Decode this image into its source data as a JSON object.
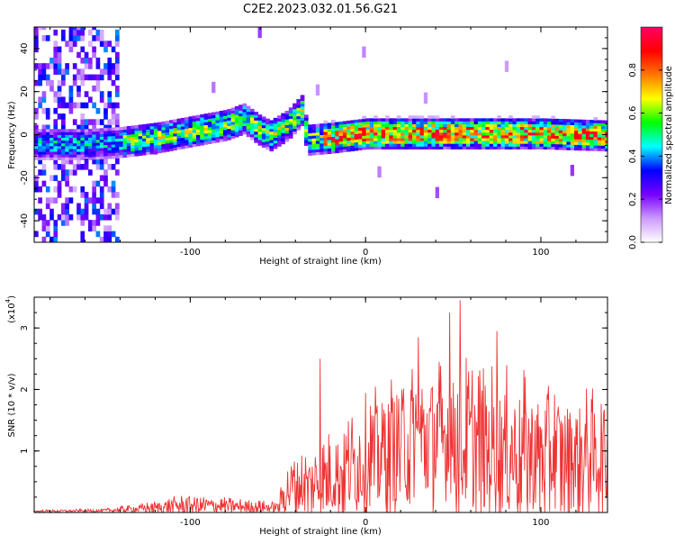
{
  "figure": {
    "title": "C2E2.2023.032.01.56.G21"
  },
  "chart_data": [
    {
      "type": "heatmap",
      "xlabel": "Height of straight line (km)",
      "ylabel": "Frequency (Hz)",
      "xlim": [
        -189,
        138
      ],
      "ylim": [
        -50,
        50
      ],
      "x_ticks": [
        -100,
        0,
        100
      ],
      "y_ticks": [
        -40,
        -20,
        0,
        20,
        40
      ],
      "colorbar": {
        "label": "Normalized spectral amplitude",
        "range": [
          0,
          1
        ],
        "ticks": [
          "0.0",
          "0.2",
          "0.4",
          "0.6",
          "0.8"
        ],
        "colors": [
          "#ffffff",
          "#cc99ff",
          "#7700ff",
          "#0000ff",
          "#00ffff",
          "#00ff00",
          "#ffff00",
          "#ff7700",
          "#ff0000",
          "#ff0066"
        ]
      },
      "signal_track": [
        {
          "x": -180,
          "f": -5
        },
        {
          "x": -160,
          "f": -5
        },
        {
          "x": -140,
          "f": -4
        },
        {
          "x": -120,
          "f": -2
        },
        {
          "x": -100,
          "f": 1
        },
        {
          "x": -80,
          "f": 4
        },
        {
          "x": -70,
          "f": 7
        },
        {
          "x": -62,
          "f": 2
        },
        {
          "x": -55,
          "f": -1
        },
        {
          "x": -45,
          "f": 4
        },
        {
          "x": -37,
          "f": 11
        },
        {
          "x": -34,
          "f": -3
        },
        {
          "x": -20,
          "f": -2
        },
        {
          "x": 0,
          "f": 0
        },
        {
          "x": 50,
          "f": 0
        },
        {
          "x": 100,
          "f": 0
        },
        {
          "x": 138,
          "f": -1
        }
      ]
    },
    {
      "type": "line",
      "xlabel": "Height of straight line (km)",
      "ylabel": "SNR (10 * v/v)",
      "y_exponent_label": "(x10",
      "y_exponent_power": "4",
      "y_exponent_close": ")",
      "xlim": [
        -189,
        138
      ],
      "ylim": [
        0,
        3.5
      ],
      "x_ticks": [
        -100,
        0,
        100
      ],
      "y_ticks": [
        1,
        2,
        3
      ],
      "series_color": "#ee3333",
      "envelope": [
        {
          "x": -189,
          "base": 0.02,
          "amp": 0.02
        },
        {
          "x": -150,
          "base": 0.03,
          "amp": 0.03
        },
        {
          "x": -130,
          "base": 0.06,
          "amp": 0.08
        },
        {
          "x": -100,
          "base": 0.12,
          "amp": 0.2
        },
        {
          "x": -80,
          "base": 0.1,
          "amp": 0.15
        },
        {
          "x": -50,
          "base": 0.08,
          "amp": 0.1
        },
        {
          "x": -45,
          "base": 0.4,
          "amp": 0.55
        },
        {
          "x": -30,
          "base": 0.45,
          "amp": 0.7
        },
        {
          "x": -15,
          "base": 0.65,
          "amp": 0.85
        },
        {
          "x": 0,
          "base": 0.85,
          "amp": 1.1
        },
        {
          "x": 20,
          "base": 1.1,
          "amp": 1.3
        },
        {
          "x": 40,
          "base": 1.2,
          "amp": 1.4
        },
        {
          "x": 60,
          "base": 1.1,
          "amp": 1.5
        },
        {
          "x": 80,
          "base": 1.0,
          "amp": 1.4
        },
        {
          "x": 100,
          "base": 0.95,
          "amp": 1.3
        },
        {
          "x": 120,
          "base": 0.9,
          "amp": 1.2
        },
        {
          "x": 138,
          "base": 0.9,
          "amp": 1.1
        }
      ],
      "peaks": [
        {
          "x": -26,
          "y": 2.5
        },
        {
          "x": 48,
          "y": 3.25
        },
        {
          "x": 54,
          "y": 3.45
        },
        {
          "x": 75,
          "y": 2.95
        },
        {
          "x": 30,
          "y": 2.85
        }
      ]
    }
  ]
}
